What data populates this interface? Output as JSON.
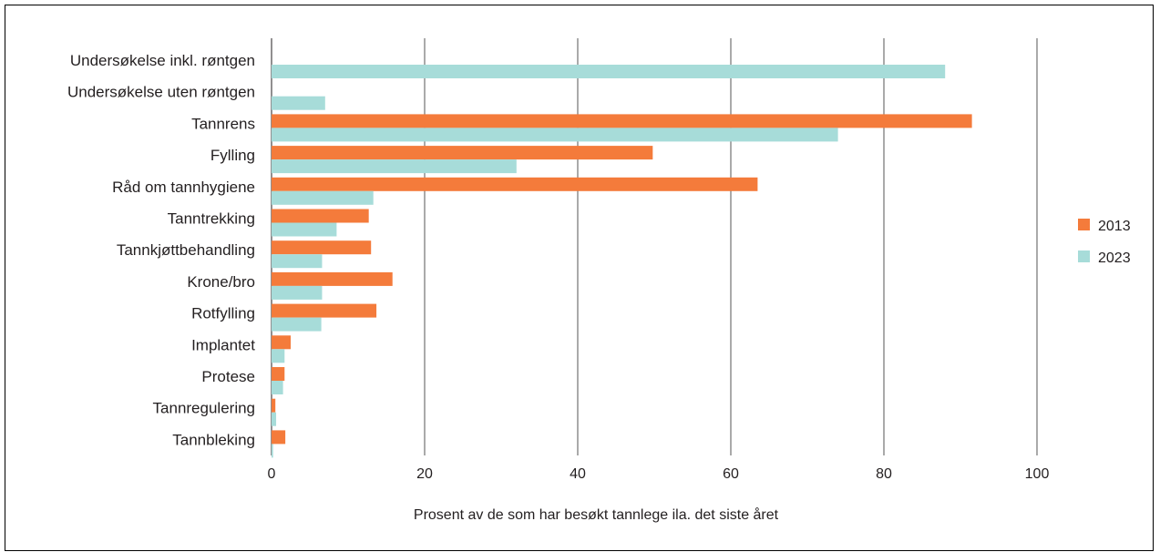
{
  "chart_data": {
    "type": "bar",
    "orientation": "horizontal",
    "title": "",
    "xlabel": "Prosent av de som har besøkt tannlege ila. det siste året",
    "ylabel": "",
    "xlim": [
      0,
      100
    ],
    "xticks": [
      "0",
      "20",
      "40",
      "60",
      "80",
      "100"
    ],
    "grid": true,
    "legend_position": "right",
    "categories": [
      "Undersøkelse inkl. røntgen",
      "Undersøkelse uten røntgen",
      "Tannrens",
      "Fylling",
      "Råd om tannhygiene",
      "Tanntrekking",
      "Tannkjøttbehandling",
      "Krone/bro",
      "Rotfylling",
      "Implantet",
      "Protese",
      "Tannregulering",
      "Tannbleking"
    ],
    "series": [
      {
        "name": "2013",
        "color": "#f47b3b",
        "values": [
          null,
          null,
          91.5,
          49.8,
          63.5,
          12.7,
          13.0,
          15.8,
          13.7,
          2.5,
          1.7,
          0.5,
          1.8
        ]
      },
      {
        "name": "2023",
        "color": "#a7dcd9",
        "values": [
          88.0,
          7.0,
          74.0,
          32.0,
          13.3,
          8.5,
          6.6,
          6.6,
          6.5,
          1.7,
          1.5,
          0.6,
          0.2
        ]
      }
    ]
  }
}
